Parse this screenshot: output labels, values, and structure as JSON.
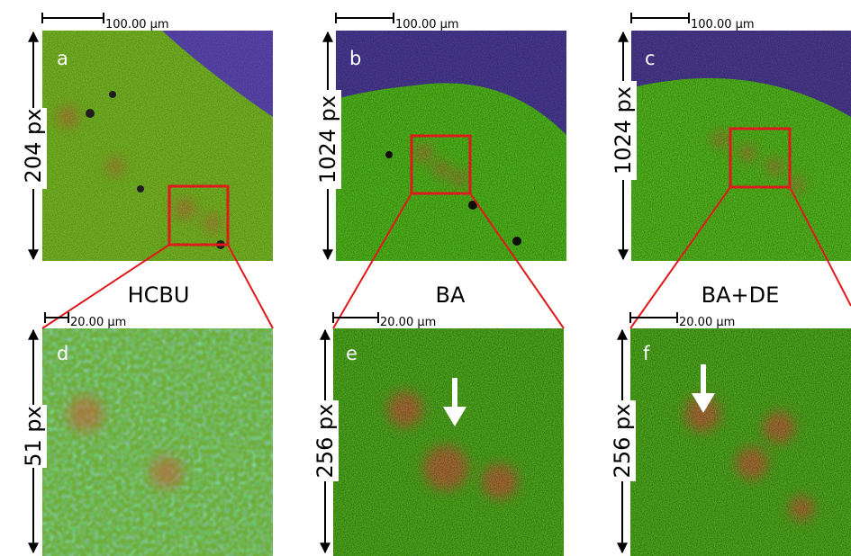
{
  "panels": [
    {
      "letter": "a",
      "scale_bar": "100.00 µm",
      "size_label": "204 px"
    },
    {
      "letter": "b",
      "scale_bar": "100.00 µm",
      "size_label": "1024 px"
    },
    {
      "letter": "c",
      "scale_bar": "100.00 µm",
      "size_label": "1024 px"
    },
    {
      "letter": "d",
      "scale_bar": "20.00 µm",
      "size_label": "51 px"
    },
    {
      "letter": "e",
      "scale_bar": "20.00 µm",
      "size_label": "256 px"
    },
    {
      "letter": "f",
      "scale_bar": "20.00 µm",
      "size_label": "256 px"
    }
  ],
  "methods": [
    "HCBU",
    "BA",
    "BA+DE"
  ]
}
